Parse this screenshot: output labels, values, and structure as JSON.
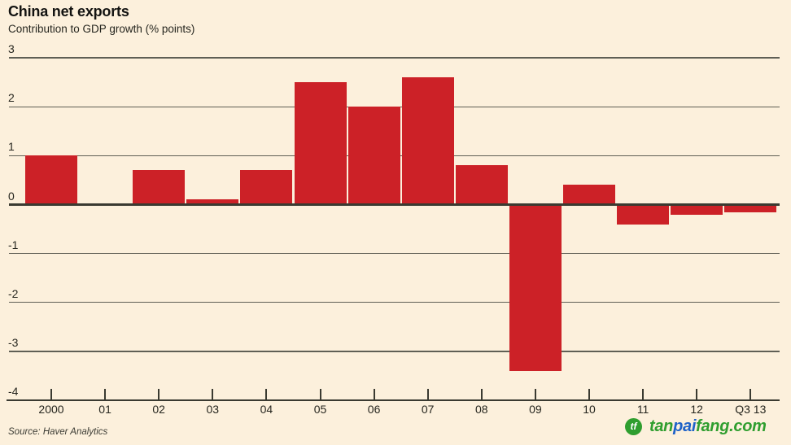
{
  "header": {
    "title": "China net exports",
    "subtitle": "Contribution to GDP growth (% points)"
  },
  "chart_data": {
    "type": "bar",
    "categories": [
      "2000",
      "01",
      "02",
      "03",
      "04",
      "05",
      "06",
      "07",
      "08",
      "09",
      "10",
      "11",
      "12",
      "Q3 13"
    ],
    "values": [
      1.0,
      0,
      0.7,
      0.1,
      0.7,
      2.5,
      2.0,
      2.6,
      0.8,
      -3.4,
      0.4,
      -0.4,
      -0.2,
      -0.15
    ],
    "title": "China net exports",
    "xlabel": "",
    "ylabel": "Contribution to GDP growth (% points)",
    "ylim": [
      -4,
      3
    ],
    "yticks": [
      3,
      2,
      1,
      0,
      -1,
      -2,
      -3,
      -4
    ],
    "grid": true,
    "legend": "none",
    "bar_color": "#cc2127"
  },
  "footer": {
    "source": "Source: Haver Analytics"
  },
  "watermark": {
    "logo_text": "tf",
    "logo_color": "#2f9e2f",
    "parts": [
      {
        "text": "tan",
        "color": "#2f9e2f"
      },
      {
        "text": "pai",
        "color": "#1e62c8"
      },
      {
        "text": "fang.com",
        "color": "#2f9e2f"
      }
    ]
  },
  "colors": {
    "background": "#fcf0dc",
    "bar": "#cc2127",
    "gridline": "#5f5f55",
    "axis": "#3a3a31",
    "text": "#26261f"
  }
}
